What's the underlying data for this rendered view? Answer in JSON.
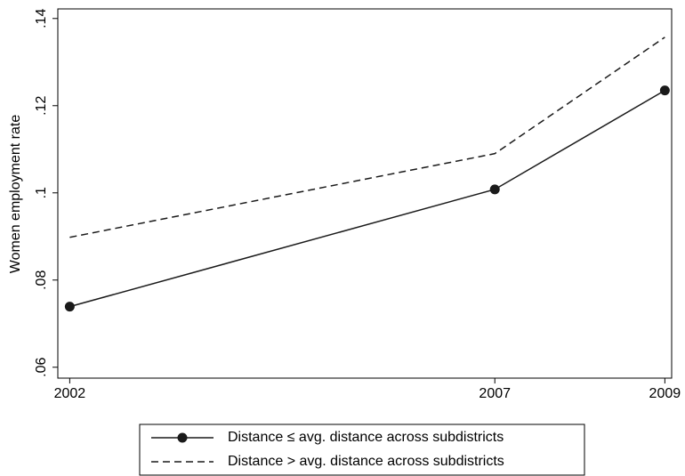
{
  "chart_data": {
    "type": "line",
    "y_label": "Women employment rate",
    "x": [
      2002,
      2007,
      2009
    ],
    "xlim": [
      2001.86,
      2009.08
    ],
    "xticks": [
      2002,
      2007,
      2009
    ],
    "ylim": [
      0.0575,
      0.1422
    ],
    "yticks": [
      {
        "value": 0.06,
        "label": ".06"
      },
      {
        "value": 0.08,
        "label": ".08"
      },
      {
        "value": 0.1,
        "label": ".1"
      },
      {
        "value": 0.12,
        "label": ".12"
      },
      {
        "value": 0.14,
        "label": ".14"
      }
    ],
    "series": [
      {
        "name": "Distance ≤ avg. distance across subdistricts",
        "color": "#1a1a1a",
        "dashed": false,
        "markers": true,
        "values": [
          0.0739,
          0.1008,
          0.1235
        ]
      },
      {
        "name": "Distance > avg. distance across subdistricts",
        "color": "#1a1a1a",
        "dashed": true,
        "markers": false,
        "values": [
          0.0898,
          0.109,
          0.1357
        ]
      }
    ]
  }
}
